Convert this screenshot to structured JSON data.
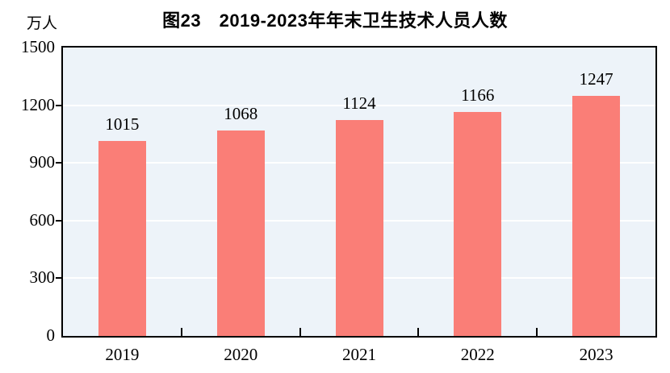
{
  "figure": {
    "title": "图23　2019-2023年年末卫生技术人员人数",
    "unit_label": "万人"
  },
  "chart_data": {
    "type": "bar",
    "title": "图23　2019-2023年年末卫生技术人员人数",
    "unit": "万人",
    "categories": [
      "2019",
      "2020",
      "2021",
      "2022",
      "2023"
    ],
    "values": [
      1015,
      1068,
      1124,
      1166,
      1247
    ],
    "xlabel": "",
    "ylabel": "万人",
    "ylim": [
      0,
      1500
    ],
    "yticks": [
      0,
      300,
      600,
      900,
      1200,
      1500
    ],
    "grid": true,
    "legend": false,
    "data_labels": true,
    "colors": {
      "bar": "#FA7E77",
      "plot_background": "#EDF3F9",
      "gridline": "#FFFFFF",
      "axis": "#000000",
      "text": "#000000"
    }
  }
}
